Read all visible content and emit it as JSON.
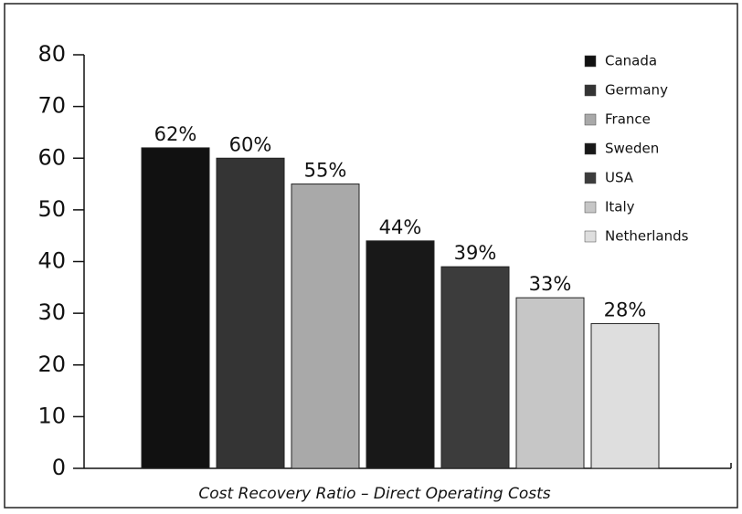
{
  "chart_data": {
    "type": "bar",
    "xlabel": "Cost Recovery Ratio – Direct Operating Costs",
    "categories": [
      "Canada",
      "Germany",
      "France",
      "Sweden",
      "USA",
      "Italy",
      "Netherlands"
    ],
    "values": [
      62,
      60,
      55,
      44,
      39,
      33,
      28
    ],
    "value_labels": [
      "62%",
      "60%",
      "55%",
      "44%",
      "39%",
      "33%",
      "28%"
    ],
    "colors": [
      "#111111",
      "#343434",
      "#a9a9a9",
      "#181818",
      "#3c3c3c",
      "#c6c6c6",
      "#dedede"
    ],
    "ylim": [
      0,
      80
    ],
    "yticks": [
      0,
      10,
      20,
      30,
      40,
      50,
      60,
      70,
      80
    ],
    "legend": "upper right"
  }
}
